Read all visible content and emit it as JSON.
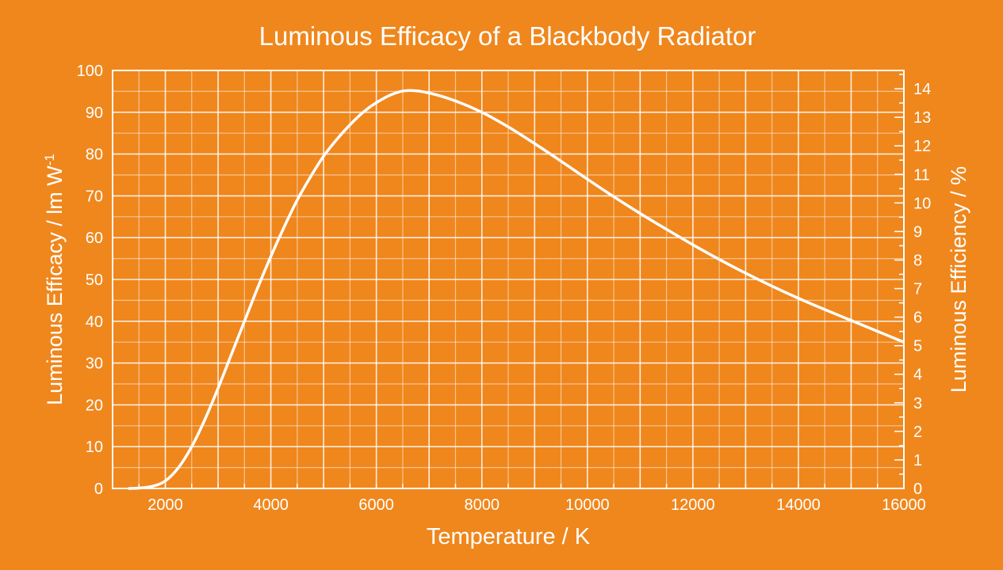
{
  "chart_data": {
    "type": "line",
    "title": "Luminous Efficacy of a Blackbody Radiator",
    "xlabel": "Temperature / K",
    "ylabel": "Luminous Efficacy / lm W",
    "ylabel_superscript": "-1",
    "y2label": "Luminous Efficiency / %",
    "xlim": [
      1000,
      16000
    ],
    "ylim": [
      0,
      100
    ],
    "y2lim": [
      0,
      14.64
    ],
    "grid": true,
    "xticks": [
      2000,
      4000,
      6000,
      8000,
      10000,
      12000,
      14000,
      16000
    ],
    "yticks": [
      0,
      10,
      20,
      30,
      40,
      50,
      60,
      70,
      80,
      90,
      100
    ],
    "y2ticks": [
      0,
      1,
      2,
      3,
      4,
      5,
      6,
      7,
      8,
      9,
      10,
      11,
      12,
      13,
      14
    ],
    "series": [
      {
        "name": "Luminous efficacy",
        "x": [
          1300,
          1500,
          1750,
          2000,
          2250,
          2500,
          2750,
          3000,
          3250,
          3500,
          3750,
          4000,
          4250,
          4500,
          4750,
          5000,
          5250,
          5500,
          5750,
          6000,
          6300,
          6600,
          7000,
          7500,
          8000,
          8500,
          9000,
          9500,
          10000,
          10500,
          11000,
          11500,
          12000,
          12500,
          13000,
          13500,
          14000,
          14500,
          15000,
          15500,
          16000
        ],
        "y": [
          0,
          0.1,
          0.5,
          1.8,
          5,
          10,
          16.5,
          24,
          32,
          40,
          48,
          55.5,
          62.5,
          69,
          74.5,
          79.5,
          83.5,
          87,
          90,
          92.3,
          94.3,
          95.2,
          94.6,
          92.7,
          90,
          86.5,
          82.5,
          78.3,
          74,
          69.8,
          65.8,
          62,
          58.3,
          54.8,
          51.5,
          48.4,
          45.5,
          42.8,
          40.2,
          37.6,
          35
        ]
      }
    ]
  }
}
